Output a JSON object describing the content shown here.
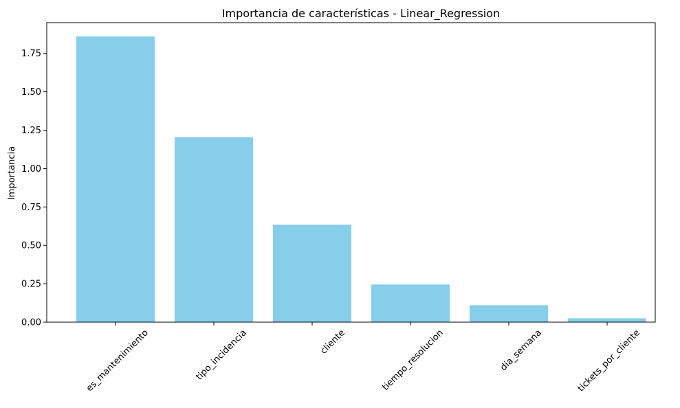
{
  "chart_data": {
    "type": "bar",
    "title": "Importancia de características - Linear_Regression",
    "xlabel": "",
    "ylabel": "Importancia",
    "categories": [
      "es_mantenimiento",
      "tipo_incidencia",
      "cliente",
      "tiempo_resolucion",
      "dia_semana",
      "tickets_por_cliente"
    ],
    "values": [
      1.86,
      1.205,
      0.635,
      0.245,
      0.11,
      0.025
    ],
    "ylim": [
      0,
      1.95
    ],
    "yticks": [
      "0.00",
      "0.25",
      "0.50",
      "0.75",
      "1.00",
      "1.25",
      "1.50",
      "1.75"
    ],
    "bar_color": "#87ceeb",
    "grid": false,
    "legend": "none",
    "xtick_rotation": 45
  }
}
